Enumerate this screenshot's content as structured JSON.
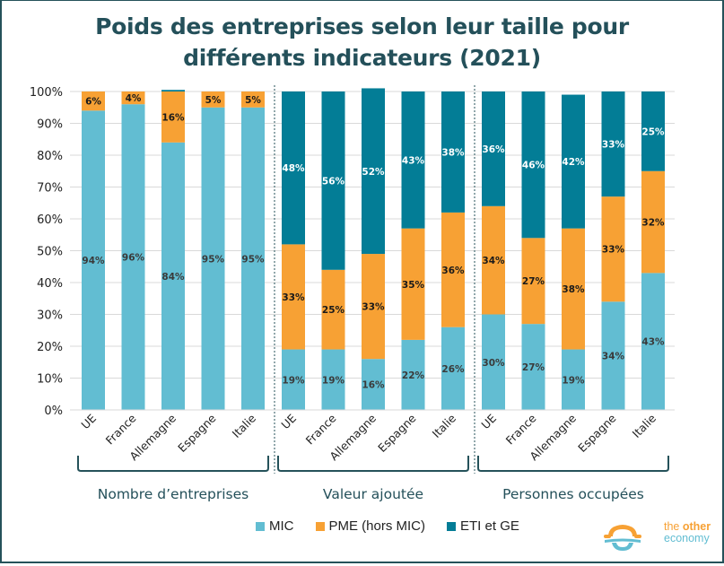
{
  "chart_data": {
    "type": "bar",
    "stacked": true,
    "normalized": true,
    "title": "Poids des entreprises selon leur taille pour différents indicateurs (2021)",
    "xlabel": "",
    "ylabel": "",
    "ylim": [
      0,
      100
    ],
    "yticks": [
      "0%",
      "10%",
      "20%",
      "30%",
      "40%",
      "50%",
      "60%",
      "70%",
      "80%",
      "90%",
      "100%"
    ],
    "grid": true,
    "legend_position": "bottom",
    "groups": [
      {
        "label": "Nombre d’entreprises",
        "categories": [
          "UE",
          "France",
          "Allemagne",
          "Espagne",
          "Italie"
        ],
        "series": [
          {
            "name": "MIC",
            "values": [
              94,
              96,
              84,
              95,
              95
            ],
            "labels": [
              "94%",
              "96%",
              "84%",
              "95%",
              "95%"
            ]
          },
          {
            "name": "PME (hors MIC)",
            "values": [
              6,
              4,
              16,
              5,
              5
            ],
            "labels": [
              "6%",
              "4%",
              "16%",
              "5%",
              "5%"
            ]
          },
          {
            "name": "ETI et GE",
            "values": [
              0,
              0,
              0.5,
              0,
              0
            ],
            "labels": [
              "",
              "",
              "",
              "",
              ""
            ]
          }
        ]
      },
      {
        "label": "Valeur ajoutée",
        "categories": [
          "UE",
          "France",
          "Allemagne",
          "Espagne",
          "Italie"
        ],
        "series": [
          {
            "name": "MIC",
            "values": [
              19,
              19,
              16,
              22,
              26
            ],
            "labels": [
              "19%",
              "19%",
              "16%",
              "22%",
              "26%"
            ]
          },
          {
            "name": "PME (hors MIC)",
            "values": [
              33,
              25,
              33,
              35,
              36
            ],
            "labels": [
              "33%",
              "25%",
              "33%",
              "35%",
              "36%"
            ]
          },
          {
            "name": "ETI et GE",
            "values": [
              48,
              56,
              52,
              43,
              38
            ],
            "labels": [
              "48%",
              "56%",
              "52%",
              "43%",
              "38%"
            ]
          }
        ]
      },
      {
        "label": "Personnes occupées",
        "categories": [
          "UE",
          "France",
          "Allemagne",
          "Espagne",
          "Italie"
        ],
        "series": [
          {
            "name": "MIC",
            "values": [
              30,
              27,
              19,
              34,
              43
            ],
            "labels": [
              "30%",
              "27%",
              "19%",
              "34%",
              "43%"
            ]
          },
          {
            "name": "PME (hors MIC)",
            "values": [
              34,
              27,
              38,
              33,
              32
            ],
            "labels": [
              "34%",
              "27%",
              "38%",
              "33%",
              "32%"
            ]
          },
          {
            "name": "ETI et GE",
            "values": [
              36,
              46,
              42,
              33,
              25
            ],
            "labels": [
              "36%",
              "46%",
              "42%",
              "33%",
              "25%"
            ]
          }
        ]
      }
    ],
    "legend": [
      {
        "name": "MIC",
        "color": "#62bdd2"
      },
      {
        "name": "PME (hors MIC)",
        "color": "#f7a134"
      },
      {
        "name": "ETI et GE",
        "color": "#037d96"
      }
    ]
  },
  "colors": {
    "mic": "#62bdd2",
    "pme": "#f7a134",
    "eti": "#037d96",
    "title": "#24505a",
    "frame": "#25525a"
  },
  "title_line1": "Poids des entreprises selon leur taille pour",
  "title_line2": "différents indicateurs (2021)",
  "logo": {
    "line1_a": "the ",
    "line1_b": "other",
    "line2": "economy"
  }
}
